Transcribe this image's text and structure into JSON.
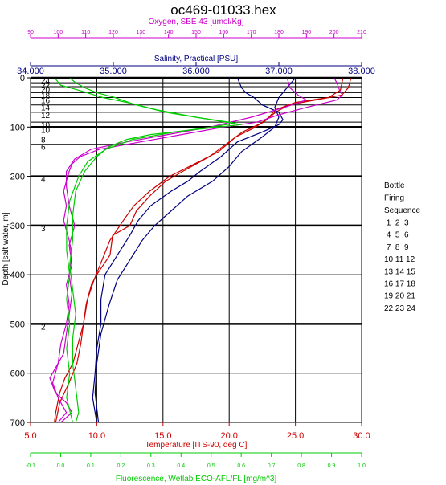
{
  "chart_data": {
    "type": "line",
    "title": "oc469-01033.hex",
    "ylabel": "Depth [salt water, m]",
    "y_inverted": true,
    "ylim": [
      0,
      700
    ],
    "y_ticks": [
      "0",
      "100",
      "200",
      "300",
      "400",
      "500",
      "600",
      "700"
    ],
    "grid": true,
    "axes": [
      {
        "key": "oxygen",
        "label": "Oxygen, SBE 43 [umol/Kg]",
        "position": "top",
        "color": "#cc00cc",
        "lim": [
          90,
          210
        ],
        "ticks": [
          "90",
          "100",
          "110",
          "120",
          "130",
          "140",
          "150",
          "160",
          "170",
          "180",
          "190",
          "200",
          "210"
        ]
      },
      {
        "key": "salinity",
        "label": "Salinity, Practical [PSU]",
        "position": "top",
        "color": "#000080",
        "lim": [
          34,
          38
        ],
        "ticks": [
          "34.000",
          "35.000",
          "36.000",
          "37.000",
          "38.000"
        ]
      },
      {
        "key": "temperature",
        "label": "Temperature [ITS-90, deg C]",
        "position": "bottom",
        "color": "#cc0000",
        "lim": [
          5,
          30
        ],
        "ticks": [
          "5.0",
          "10.0",
          "15.0",
          "20.0",
          "25.0",
          "30.0"
        ]
      },
      {
        "key": "fluorescence",
        "label": "Fluorescence, Wetlab ECO-AFL/FL [mg/m^3]",
        "position": "bottom",
        "color": "#00cc00",
        "lim": [
          -0.1,
          1.0
        ],
        "ticks": [
          "-0.1",
          "0.0",
          "0.1",
          "0.2",
          "0.3",
          "0.4",
          "0.5",
          "0.6",
          "0.7",
          "0.8",
          "0.9",
          "1.0"
        ]
      }
    ],
    "series": [
      {
        "axis": "temperature",
        "color": "#cc0000",
        "points": [
          [
            29.2,
            0
          ],
          [
            29.0,
            20
          ],
          [
            28.5,
            35
          ],
          [
            26.5,
            45
          ],
          [
            24.5,
            55
          ],
          [
            23.5,
            70
          ],
          [
            22.6,
            90
          ],
          [
            21.0,
            110
          ],
          [
            20.0,
            130
          ],
          [
            18.5,
            160
          ],
          [
            16.5,
            190
          ],
          [
            15.2,
            210
          ],
          [
            14.0,
            240
          ],
          [
            13.0,
            270
          ],
          [
            12.5,
            300
          ],
          [
            11.2,
            320
          ],
          [
            11.0,
            360
          ],
          [
            10.5,
            380
          ],
          [
            10.0,
            400
          ],
          [
            9.6,
            420
          ],
          [
            9.2,
            460
          ],
          [
            9.0,
            500
          ],
          [
            8.6,
            540
          ],
          [
            8.2,
            580
          ],
          [
            7.6,
            610
          ],
          [
            7.2,
            640
          ],
          [
            6.9,
            680
          ],
          [
            6.8,
            700
          ]
        ]
      },
      {
        "axis": "temperature",
        "color": "#cc0000",
        "points": [
          [
            28.6,
            0
          ],
          [
            28.4,
            25
          ],
          [
            27.5,
            40
          ],
          [
            25.0,
            50
          ],
          [
            23.5,
            65
          ],
          [
            23.0,
            80
          ],
          [
            22.0,
            100
          ],
          [
            20.5,
            120
          ],
          [
            19.2,
            150
          ],
          [
            17.0,
            180
          ],
          [
            15.5,
            200
          ],
          [
            14.0,
            230
          ],
          [
            12.8,
            260
          ],
          [
            12.0,
            290
          ],
          [
            11.0,
            330
          ],
          [
            10.4,
            370
          ],
          [
            9.8,
            410
          ],
          [
            9.3,
            450
          ],
          [
            9.0,
            500
          ],
          [
            8.8,
            540
          ],
          [
            8.5,
            580
          ],
          [
            7.9,
            620
          ],
          [
            7.2,
            660
          ],
          [
            6.9,
            700
          ]
        ]
      },
      {
        "axis": "salinity",
        "color": "#000080",
        "points": [
          [
            36.5,
            0
          ],
          [
            36.55,
            20
          ],
          [
            36.6,
            30
          ],
          [
            36.7,
            40
          ],
          [
            36.8,
            55
          ],
          [
            37.0,
            70
          ],
          [
            37.05,
            85
          ],
          [
            37.0,
            95
          ],
          [
            36.8,
            110
          ],
          [
            36.5,
            130
          ],
          [
            36.3,
            160
          ],
          [
            36.05,
            190
          ],
          [
            35.9,
            210
          ],
          [
            35.7,
            230
          ],
          [
            35.45,
            260
          ],
          [
            35.3,
            290
          ],
          [
            35.2,
            320
          ],
          [
            35.05,
            360
          ],
          [
            34.9,
            400
          ],
          [
            34.85,
            450
          ],
          [
            34.85,
            500
          ],
          [
            34.8,
            550
          ],
          [
            34.78,
            600
          ],
          [
            34.75,
            650
          ],
          [
            34.8,
            700
          ]
        ]
      },
      {
        "axis": "salinity",
        "color": "#000080",
        "points": [
          [
            37.2,
            0
          ],
          [
            37.1,
            20
          ],
          [
            37.0,
            40
          ],
          [
            36.95,
            60
          ],
          [
            37.0,
            80
          ],
          [
            36.95,
            100
          ],
          [
            36.8,
            120
          ],
          [
            36.55,
            150
          ],
          [
            36.4,
            180
          ],
          [
            36.2,
            210
          ],
          [
            35.9,
            240
          ],
          [
            35.7,
            270
          ],
          [
            35.5,
            300
          ],
          [
            35.35,
            330
          ],
          [
            35.2,
            370
          ],
          [
            35.05,
            410
          ],
          [
            34.95,
            460
          ],
          [
            34.85,
            520
          ],
          [
            34.8,
            580
          ],
          [
            34.78,
            640
          ],
          [
            34.82,
            700
          ]
        ]
      },
      {
        "axis": "oxygen",
        "color": "#cc00cc",
        "points": [
          [
            200,
            0
          ],
          [
            201,
            10
          ],
          [
            202,
            25
          ],
          [
            203,
            35
          ],
          [
            201,
            45
          ],
          [
            190,
            60
          ],
          [
            180,
            75
          ],
          [
            172,
            90
          ],
          [
            160,
            100
          ],
          [
            145,
            115
          ],
          [
            130,
            130
          ],
          [
            115,
            145
          ],
          [
            108,
            160
          ],
          [
            105,
            175
          ],
          [
            104,
            190
          ],
          [
            103,
            210
          ],
          [
            102,
            230
          ],
          [
            103,
            260
          ],
          [
            102,
            290
          ],
          [
            104,
            330
          ],
          [
            105,
            360
          ],
          [
            104,
            400
          ],
          [
            105,
            440
          ],
          [
            104,
            480
          ],
          [
            103,
            520
          ],
          [
            102,
            560
          ],
          [
            99,
            590
          ],
          [
            97,
            610
          ],
          [
            99,
            640
          ],
          [
            103,
            660
          ],
          [
            105,
            680
          ],
          [
            101,
            700
          ]
        ]
      },
      {
        "axis": "oxygen",
        "color": "#cc00cc",
        "points": [
          [
            183,
            0
          ],
          [
            184,
            20
          ],
          [
            187,
            35
          ],
          [
            190,
            45
          ],
          [
            182,
            60
          ],
          [
            170,
            80
          ],
          [
            155,
            100
          ],
          [
            140,
            115
          ],
          [
            125,
            130
          ],
          [
            112,
            145
          ],
          [
            106,
            165
          ],
          [
            103,
            190
          ],
          [
            103,
            220
          ],
          [
            104,
            260
          ],
          [
            106,
            300
          ],
          [
            104,
            340
          ],
          [
            105,
            380
          ],
          [
            103,
            420
          ],
          [
            104,
            460
          ],
          [
            103,
            500
          ],
          [
            101,
            540
          ],
          [
            100,
            580
          ],
          [
            98,
            620
          ],
          [
            100,
            650
          ],
          [
            103,
            680
          ],
          [
            100,
            700
          ]
        ]
      },
      {
        "axis": "fluorescence",
        "color": "#00cc00",
        "points": [
          [
            0.03,
            0
          ],
          [
            0.05,
            10
          ],
          [
            0.08,
            20
          ],
          [
            0.12,
            30
          ],
          [
            0.18,
            40
          ],
          [
            0.25,
            55
          ],
          [
            0.35,
            70
          ],
          [
            0.5,
            85
          ],
          [
            0.6,
            95
          ],
          [
            0.45,
            105
          ],
          [
            0.3,
            115
          ],
          [
            0.22,
            125
          ],
          [
            0.16,
            140
          ],
          [
            0.12,
            160
          ],
          [
            0.08,
            190
          ],
          [
            0.05,
            230
          ],
          [
            0.04,
            280
          ],
          [
            0.04,
            330
          ],
          [
            0.03,
            380
          ],
          [
            0.04,
            430
          ],
          [
            0.05,
            480
          ],
          [
            0.04,
            530
          ],
          [
            0.04,
            580
          ],
          [
            0.05,
            630
          ],
          [
            0.06,
            680
          ],
          [
            0.05,
            700
          ]
        ]
      },
      {
        "axis": "fluorescence",
        "color": "#00cc00",
        "points": [
          [
            -0.02,
            0
          ],
          [
            0.0,
            15
          ],
          [
            0.06,
            25
          ],
          [
            0.14,
            40
          ],
          [
            0.22,
            50
          ],
          [
            0.32,
            65
          ],
          [
            0.45,
            80
          ],
          [
            0.58,
            92
          ],
          [
            0.5,
            100
          ],
          [
            0.38,
            110
          ],
          [
            0.24,
            125
          ],
          [
            0.15,
            145
          ],
          [
            0.09,
            170
          ],
          [
            0.06,
            200
          ],
          [
            0.03,
            250
          ],
          [
            0.02,
            300
          ],
          [
            0.02,
            350
          ],
          [
            0.03,
            400
          ],
          [
            0.02,
            450
          ],
          [
            0.03,
            500
          ],
          [
            0.02,
            550
          ],
          [
            0.03,
            600
          ],
          [
            0.02,
            650
          ],
          [
            0.04,
            700
          ]
        ]
      }
    ],
    "bottle_lines": [
      {
        "depth": 0,
        "label": "24",
        "bold": true
      },
      {
        "depth": 10,
        "label": "22"
      },
      {
        "depth": 18,
        "label": "20"
      },
      {
        "depth": 30,
        "label": "18"
      },
      {
        "depth": 40,
        "label": "16"
      },
      {
        "depth": 55,
        "label": "14"
      },
      {
        "depth": 70,
        "label": "12"
      },
      {
        "depth": 90,
        "label": "10"
      },
      {
        "depth": 100,
        "label": "10",
        "bold": true
      },
      {
        "depth": 120,
        "label": "8"
      },
      {
        "depth": 135,
        "label": "6"
      },
      {
        "depth": 200,
        "label": "4",
        "bold": true
      },
      {
        "depth": 300,
        "label": "3",
        "bold": true
      },
      {
        "depth": 500,
        "label": "2",
        "bold": true
      }
    ],
    "legend": {
      "placement": "right",
      "title_lines": [
        "Bottle",
        "Firing",
        "Sequence"
      ],
      "rows": [
        " 1  2  3",
        " 4  5  6",
        " 7  8  9",
        "10 11 12",
        "13 14 15",
        "16 17 18",
        "19 20 21",
        "22 23 24"
      ]
    }
  }
}
